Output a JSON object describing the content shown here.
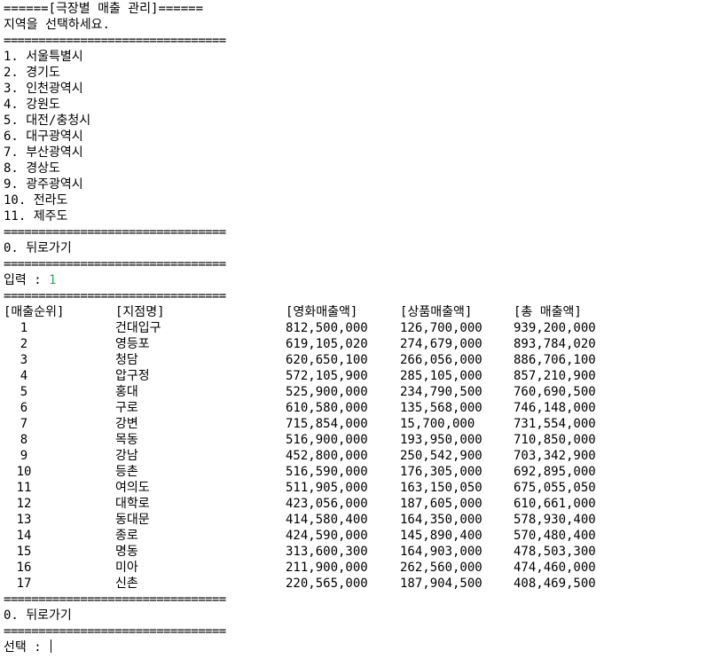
{
  "title_line": "======[극장별 매출 관리]======",
  "prompt_region": "지역을 선택하세요.",
  "separator": "================================",
  "regions": [
    "1. 서울특별시",
    "2. 경기도",
    "3. 인천광역시",
    "4. 강원도",
    "5. 대전/충청시",
    "6. 대구광역시",
    "7. 부산광역시",
    "8. 경상도",
    "9. 광주광역시",
    "10. 전라도",
    "11. 제주도"
  ],
  "back_label": "0. 뒤로가기",
  "input_label": "입력 : ",
  "input_value": "1",
  "table": {
    "headers": [
      "[매출순위]",
      "[지점명]",
      "[영화매출액]",
      "[상품매출액]",
      "[총 매출액]"
    ],
    "rows": [
      {
        "rank": "1",
        "name": "건대입구",
        "movie": "812,500,000",
        "goods": "126,700,000",
        "total": "939,200,000"
      },
      {
        "rank": "2",
        "name": "영등포",
        "movie": "619,105,020",
        "goods": "274,679,000",
        "total": "893,784,020"
      },
      {
        "rank": "3",
        "name": "청담",
        "movie": "620,650,100",
        "goods": "266,056,000",
        "total": "886,706,100"
      },
      {
        "rank": "4",
        "name": "압구정",
        "movie": "572,105,900",
        "goods": "285,105,000",
        "total": "857,210,900"
      },
      {
        "rank": "5",
        "name": "홍대",
        "movie": "525,900,000",
        "goods": "234,790,500",
        "total": "760,690,500"
      },
      {
        "rank": "6",
        "name": "구로",
        "movie": "610,580,000",
        "goods": "135,568,000",
        "total": "746,148,000"
      },
      {
        "rank": "7",
        "name": "강변",
        "movie": "715,854,000",
        "goods": "15,700,000",
        "total": "731,554,000"
      },
      {
        "rank": "8",
        "name": "목동",
        "movie": "516,900,000",
        "goods": "193,950,000",
        "total": "710,850,000"
      },
      {
        "rank": "9",
        "name": "강남",
        "movie": "452,800,000",
        "goods": "250,542,900",
        "total": "703,342,900"
      },
      {
        "rank": "10",
        "name": "등촌",
        "movie": "516,590,000",
        "goods": "176,305,000",
        "total": "692,895,000"
      },
      {
        "rank": "11",
        "name": "여의도",
        "movie": "511,905,000",
        "goods": "163,150,050",
        "total": "675,055,050"
      },
      {
        "rank": "12",
        "name": "대학로",
        "movie": "423,056,000",
        "goods": "187,605,000",
        "total": "610,661,000"
      },
      {
        "rank": "13",
        "name": "동대문",
        "movie": "414,580,400",
        "goods": "164,350,000",
        "total": "578,930,400"
      },
      {
        "rank": "14",
        "name": "종로",
        "movie": "424,590,000",
        "goods": "145,890,400",
        "total": "570,480,400"
      },
      {
        "rank": "15",
        "name": "명동",
        "movie": "313,600,300",
        "goods": "164,903,000",
        "total": "478,503,300"
      },
      {
        "rank": "16",
        "name": "미아",
        "movie": "211,900,000",
        "goods": "262,560,000",
        "total": "474,460,000"
      },
      {
        "rank": "17",
        "name": "신촌",
        "movie": "220,565,000",
        "goods": "187,904,500",
        "total": "408,469,500"
      }
    ]
  },
  "select_label": "선택 : ",
  "colors": {
    "background": "#ffffff",
    "text": "#000000",
    "input_value": "#23b35a"
  }
}
